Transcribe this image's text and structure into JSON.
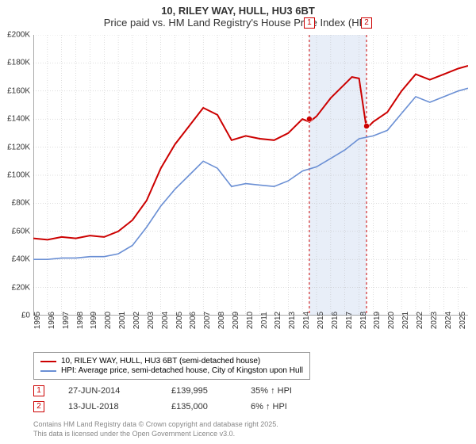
{
  "title": {
    "main": "10, RILEY WAY, HULL, HU3 6BT",
    "sub": "Price paid vs. HM Land Registry's House Price Index (HPI)"
  },
  "chart": {
    "type": "line",
    "background_color": "#ffffff",
    "grid_color": "#bbbbbb",
    "axis_color": "#555555",
    "x_start_year": 1995,
    "x_end_year": 2025.7,
    "x_ticks": [
      1995,
      1996,
      1997,
      1998,
      1999,
      2000,
      2001,
      2002,
      2003,
      2004,
      2005,
      2006,
      2007,
      2008,
      2009,
      2010,
      2011,
      2012,
      2013,
      2014,
      2015,
      2016,
      2017,
      2018,
      2019,
      2020,
      2021,
      2022,
      2023,
      2024,
      2025
    ],
    "ylim": [
      0,
      200000
    ],
    "ytick_step": 20000,
    "y_tick_labels": [
      "£0",
      "£20K",
      "£40K",
      "£60K",
      "£80K",
      "£100K",
      "£120K",
      "£140K",
      "£160K",
      "£180K",
      "£200K"
    ],
    "series": [
      {
        "name": "10, RILEY WAY, HULL, HU3 6BT (semi-detached house)",
        "color": "#cc0000",
        "width": 2,
        "data": [
          [
            1995,
            55000
          ],
          [
            1996,
            54000
          ],
          [
            1997,
            56000
          ],
          [
            1998,
            55000
          ],
          [
            1999,
            57000
          ],
          [
            2000,
            56000
          ],
          [
            2001,
            60000
          ],
          [
            2002,
            68000
          ],
          [
            2003,
            82000
          ],
          [
            2004,
            105000
          ],
          [
            2005,
            122000
          ],
          [
            2006,
            135000
          ],
          [
            2007,
            148000
          ],
          [
            2008,
            143000
          ],
          [
            2009,
            125000
          ],
          [
            2010,
            128000
          ],
          [
            2011,
            126000
          ],
          [
            2012,
            125000
          ],
          [
            2013,
            130000
          ],
          [
            2014,
            139995
          ],
          [
            2014.5,
            138000
          ],
          [
            2015,
            142000
          ],
          [
            2016,
            155000
          ],
          [
            2017,
            165000
          ],
          [
            2017.5,
            170000
          ],
          [
            2018,
            169000
          ],
          [
            2018.5,
            135000
          ],
          [
            2018.6,
            134000
          ],
          [
            2019,
            138000
          ],
          [
            2020,
            145000
          ],
          [
            2021,
            160000
          ],
          [
            2022,
            172000
          ],
          [
            2023,
            168000
          ],
          [
            2024,
            172000
          ],
          [
            2025,
            176000
          ],
          [
            2025.7,
            178000
          ]
        ]
      },
      {
        "name": "HPI: Average price, semi-detached house, City of Kingston upon Hull",
        "color": "#6a8fd4",
        "width": 1.6,
        "data": [
          [
            1995,
            40000
          ],
          [
            1996,
            40000
          ],
          [
            1997,
            41000
          ],
          [
            1998,
            41000
          ],
          [
            1999,
            42000
          ],
          [
            2000,
            42000
          ],
          [
            2001,
            44000
          ],
          [
            2002,
            50000
          ],
          [
            2003,
            63000
          ],
          [
            2004,
            78000
          ],
          [
            2005,
            90000
          ],
          [
            2006,
            100000
          ],
          [
            2007,
            110000
          ],
          [
            2008,
            105000
          ],
          [
            2009,
            92000
          ],
          [
            2010,
            94000
          ],
          [
            2011,
            93000
          ],
          [
            2012,
            92000
          ],
          [
            2013,
            96000
          ],
          [
            2014,
            103000
          ],
          [
            2015,
            106000
          ],
          [
            2016,
            112000
          ],
          [
            2017,
            118000
          ],
          [
            2018,
            126000
          ],
          [
            2019,
            128000
          ],
          [
            2020,
            132000
          ],
          [
            2021,
            144000
          ],
          [
            2022,
            156000
          ],
          [
            2023,
            152000
          ],
          [
            2024,
            156000
          ],
          [
            2025,
            160000
          ],
          [
            2025.7,
            162000
          ]
        ]
      }
    ],
    "sale_band": {
      "start_year": 2014.49,
      "end_year": 2018.53,
      "fill": "#e8eef8"
    },
    "sale_points": [
      {
        "num": "1",
        "year": 2014.49,
        "price": 139995,
        "color": "#cc0000"
      },
      {
        "num": "2",
        "year": 2018.53,
        "price": 135000,
        "color": "#cc0000"
      }
    ]
  },
  "legend": [
    {
      "color": "#cc0000",
      "label": "10, RILEY WAY, HULL, HU3 6BT (semi-detached house)"
    },
    {
      "color": "#6a8fd4",
      "label": "HPI: Average price, semi-detached house, City of Kingston upon Hull"
    }
  ],
  "sales": [
    {
      "num": "1",
      "color": "#cc0000",
      "date": "27-JUN-2014",
      "price": "£139,995",
      "hpi": "35% ↑ HPI"
    },
    {
      "num": "2",
      "color": "#cc0000",
      "date": "13-JUL-2018",
      "price": "£135,000",
      "hpi": "6% ↑ HPI"
    }
  ],
  "footer": {
    "line1": "Contains HM Land Registry data © Crown copyright and database right 2025.",
    "line2": "This data is licensed under the Open Government Licence v3.0."
  }
}
